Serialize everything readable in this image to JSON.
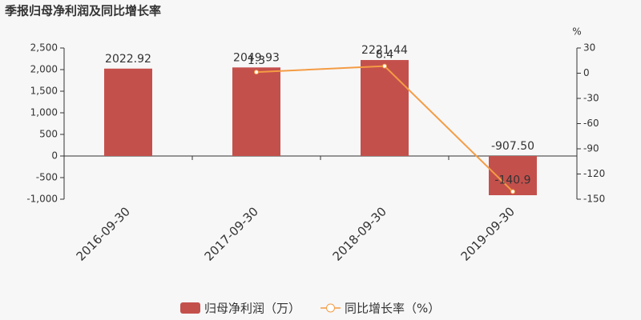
{
  "chart_data": {
    "type": "combo",
    "title": "季报归母净利润及同比增长率",
    "y2_label": "%",
    "categories": [
      "2016-09-30",
      "2017-09-30",
      "2018-09-30",
      "2019-09-30"
    ],
    "series": [
      {
        "name": "归母净利润（万）",
        "type": "bar",
        "color": "#c4504c",
        "values": [
          2022.92,
          2049.93,
          2221.44,
          -907.5
        ],
        "value_labels": [
          "2022.92",
          "2049.93",
          "2221.44",
          "-907.50"
        ]
      },
      {
        "name": "同比增长率（%）",
        "type": "line",
        "axis": "y2",
        "color": "#f49c44",
        "values": [
          null,
          1.3,
          8.4,
          -140.9
        ],
        "value_labels": [
          null,
          "1.3",
          "8.4",
          "-140.9"
        ]
      }
    ],
    "ylim": [
      -1000,
      2500
    ],
    "yticks": [
      {
        "value": -1000,
        "label": "-1,000"
      },
      -500,
      0,
      500,
      {
        "value": 1000,
        "label": "1,000"
      },
      {
        "value": 1500,
        "label": "1,500"
      },
      {
        "value": 2000,
        "label": "2,000"
      },
      {
        "value": 2500,
        "label": "2,500"
      }
    ],
    "y2lim": [
      -150,
      30
    ],
    "y2ticks": [
      -150,
      -120,
      -90,
      -60,
      -30,
      0,
      30
    ]
  }
}
